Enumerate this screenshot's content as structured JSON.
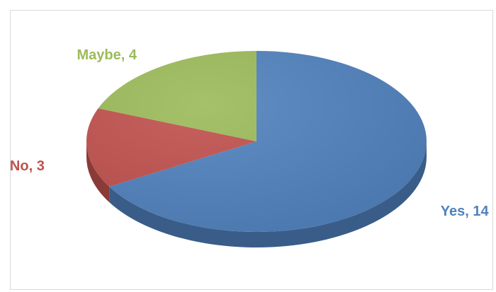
{
  "chart_data": {
    "type": "pie",
    "title": "",
    "categories": [
      "Yes",
      "No",
      "Maybe"
    ],
    "values": [
      14,
      3,
      4
    ],
    "data_labels": [
      "Yes, 14",
      "No, 3",
      "Maybe, 4"
    ],
    "colors": [
      "#4f81bd",
      "#c0504d",
      "#9bbb59"
    ],
    "label_colors": [
      "#4f81bd",
      "#c0504d",
      "#9bbb59"
    ],
    "legend": "none",
    "style": "3d-pie"
  }
}
